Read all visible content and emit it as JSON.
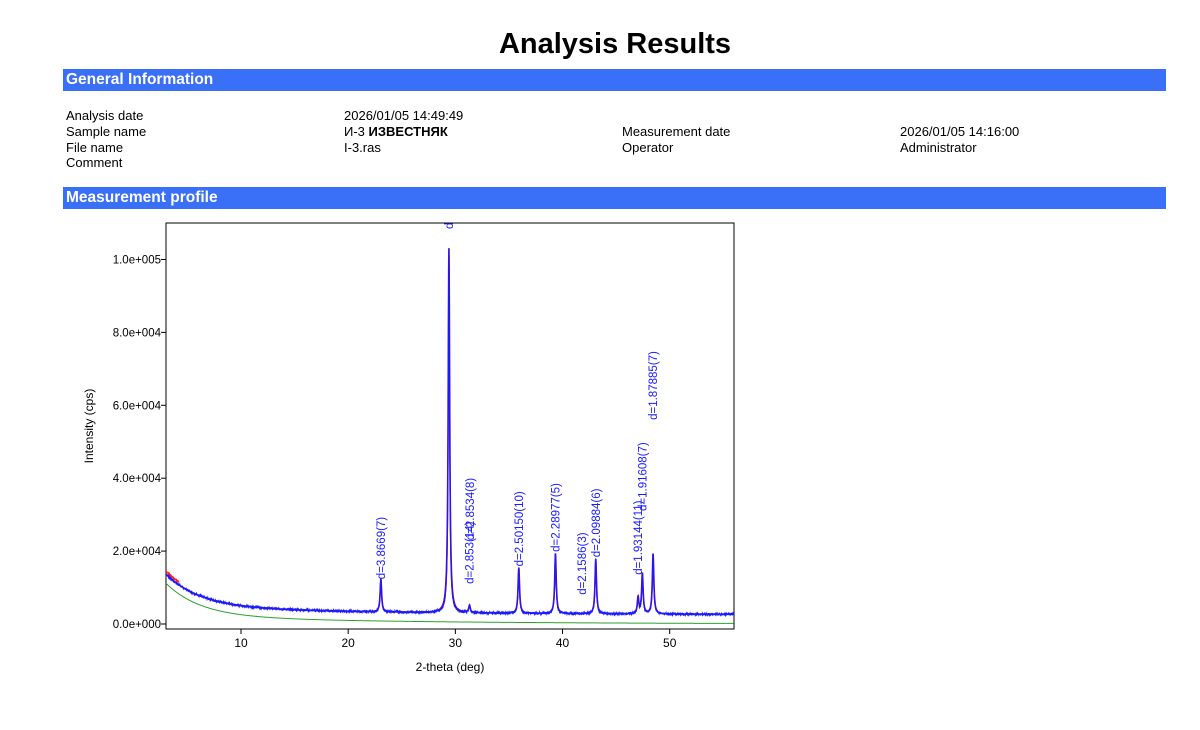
{
  "page_title": "Analysis Results",
  "sections": {
    "general": "General Information",
    "profile": "Measurement profile"
  },
  "info": {
    "analysis_date_label": "Analysis date",
    "analysis_date": "2026/01/05 14:49:49",
    "sample_name_label": "Sample name",
    "sample_code": "И-3",
    "sample_name": "ИЗВЕСТНЯК",
    "file_name_label": "File name",
    "file_name": "I-3.ras",
    "comment_label": "Comment",
    "measurement_date_label": "Measurement date",
    "measurement_date": "2026/01/05 14:16:00",
    "operator_label": "Operator",
    "operator": "Administrator"
  },
  "chart_data": {
    "type": "line",
    "xlabel": "2-theta (deg)",
    "ylabel": "Intensity (cps)",
    "xlim": [
      3,
      56
    ],
    "ylim": [
      0,
      110000
    ],
    "xticks": [
      10,
      20,
      30,
      40,
      50
    ],
    "xtick_labels": [
      "10",
      "20",
      "30",
      "40",
      "50"
    ],
    "yticks": [
      0,
      20000,
      40000,
      60000,
      80000,
      100000
    ],
    "ytick_labels": [
      "0.0e+000",
      "2.0e+004",
      "4.0e+004",
      "6.0e+004",
      "8.0e+004",
      "1.0e+005"
    ],
    "colors": {
      "measured": "#1a1aff",
      "calculated": "#800080",
      "background": "#2ca02c",
      "low_angle": "#ff2020"
    },
    "peaks": [
      {
        "two_theta": 23.05,
        "intensity": 9000,
        "label": "d=3.8669(7)"
      },
      {
        "two_theta": 29.4,
        "intensity": 100000,
        "label": "d"
      },
      {
        "two_theta": 31.32,
        "intensity": 2000,
        "label": "d=2.853(14)"
      },
      {
        "two_theta": 31.35,
        "intensity": 0,
        "label": "d=2.8534(8)"
      },
      {
        "two_theta": 35.92,
        "intensity": 12500,
        "label": "d=2.50150(10)"
      },
      {
        "two_theta": 39.34,
        "intensity": 16500,
        "label": "d=2.28977(5)"
      },
      {
        "two_theta": 41.82,
        "intensity": 0,
        "label": "d=2.1586(3)"
      },
      {
        "two_theta": 43.1,
        "intensity": 15000,
        "label": "d=2.09884(6)"
      },
      {
        "two_theta": 47.05,
        "intensity": 4500,
        "label": "d=1.93144(11)"
      },
      {
        "two_theta": 47.45,
        "intensity": 11000,
        "label": "d=1.91608(7)"
      },
      {
        "two_theta": 48.45,
        "intensity": 16500,
        "label": "d=1.87885(7)"
      }
    ]
  }
}
